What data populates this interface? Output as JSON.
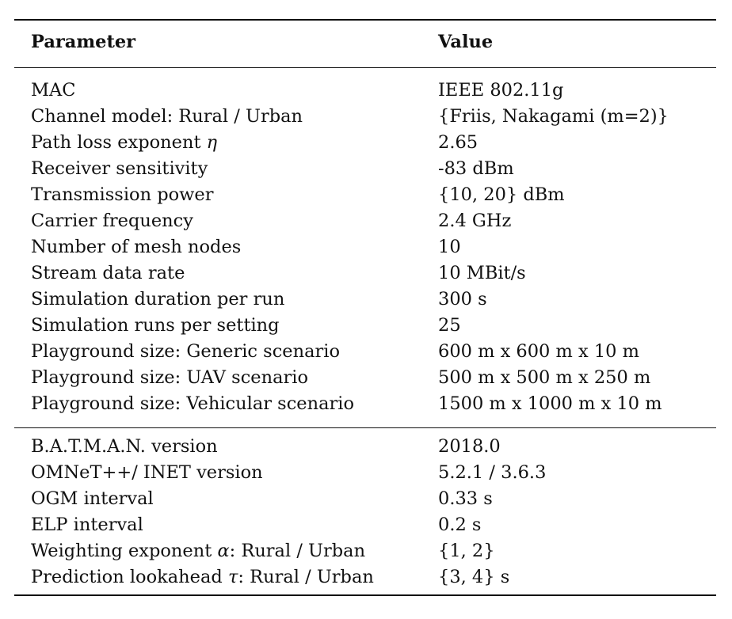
{
  "table": {
    "headers": {
      "parameter": "Parameter",
      "value": "Value"
    },
    "group1": [
      {
        "parameter": "MAC",
        "value": "IEEE 802.11g"
      },
      {
        "parameter": "Channel model: Rural / Urban",
        "value": "{Friis, Nakagami (m=2)}"
      },
      {
        "parameter": "Path loss exponent",
        "symbol": "η",
        "suffix": "",
        "value": "2.65"
      },
      {
        "parameter": "Receiver sensitivity",
        "value": "-83 dBm"
      },
      {
        "parameter": "Transmission power",
        "value": "{10, 20} dBm"
      },
      {
        "parameter": "Carrier frequency",
        "value": "2.4 GHz"
      },
      {
        "parameter": "Number of mesh nodes",
        "value": "10"
      },
      {
        "parameter": "Stream data rate",
        "value": "10 MBit/s"
      },
      {
        "parameter": "Simulation duration per run",
        "value": "300 s"
      },
      {
        "parameter": "Simulation runs per setting",
        "value": "25"
      },
      {
        "parameter": "Playground size: Generic scenario",
        "value": "600 m x 600 m x 10 m"
      },
      {
        "parameter": "Playground size: UAV scenario",
        "value": "500 m x 500 m x 250 m"
      },
      {
        "parameter": "Playground size: Vehicular scenario",
        "value": "1500 m x 1000 m x 10 m"
      }
    ],
    "group2": [
      {
        "parameter": "B.A.T.M.A.N. version",
        "value": "2018.0"
      },
      {
        "parameter": "OMNeT++/ INET version",
        "value": "5.2.1 / 3.6.3"
      },
      {
        "parameter": "OGM interval",
        "value": "0.33 s"
      },
      {
        "parameter": "ELP interval",
        "value": "0.2 s"
      },
      {
        "parameter": "Weighting exponent",
        "symbol": "α",
        "suffix": ": Rural / Urban",
        "value": "{1, 2}"
      },
      {
        "parameter": "Prediction lookahead",
        "symbol": "τ",
        "suffix": ": Rural / Urban",
        "value": "{3, 4} s"
      }
    ]
  }
}
